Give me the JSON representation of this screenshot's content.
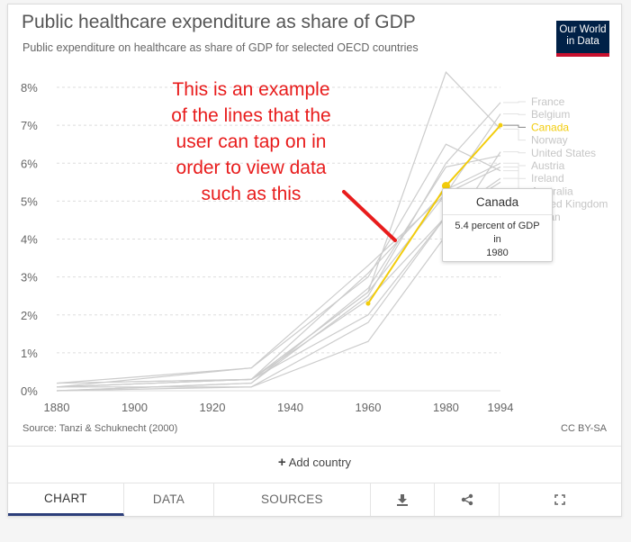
{
  "header": {
    "title": "Public healthcare expenditure as share of GDP",
    "subtitle": "Public expenditure on healthcare as share of GDP for selected OECD countries",
    "logo_line1": "Our World",
    "logo_line2": "in Data"
  },
  "annotation": {
    "lines": [
      "This is an example",
      "of the lines that the",
      "user can tap on in",
      "order to view data",
      "such as this"
    ]
  },
  "tooltip": {
    "title": "Canada",
    "line1": "5.4 percent of GDP",
    "line2": "in",
    "line3": "1980"
  },
  "footer": {
    "source": "Source: Tanzi & Schuknecht (2000)",
    "license": "CC BY-SA",
    "add_country": "Add country",
    "add_country_icon": "plus-icon"
  },
  "tabs": [
    {
      "label": "CHART",
      "active": true
    },
    {
      "label": "DATA",
      "active": false
    },
    {
      "label": "SOURCES",
      "active": false
    }
  ],
  "tab_icons": [
    "download-icon",
    "share-icon",
    "fullscreen-icon"
  ],
  "colors": {
    "highlight": "#f2cc0c",
    "lines": "#cccccc",
    "annotation": "#e81c1c",
    "tab_active": "#2c3e7a"
  },
  "chart_data": {
    "type": "line",
    "title": "Public healthcare expenditure as share of GDP",
    "subtitle": "Public expenditure on healthcare as share of GDP for selected OECD countries",
    "xlabel": "",
    "ylabel": "",
    "xlim": [
      1880,
      1994
    ],
    "ylim": [
      0,
      8
    ],
    "x_ticks": [
      1880,
      1900,
      1920,
      1940,
      1960,
      1980,
      1994
    ],
    "y_ticks": [
      "0%",
      "1%",
      "2%",
      "3%",
      "4%",
      "5%",
      "6%",
      "7%",
      "8%"
    ],
    "grid": true,
    "legend": "right",
    "highlighted_series": "Canada",
    "series": [
      {
        "name": "France",
        "x": [
          1880,
          1930,
          1960,
          1980,
          1994
        ],
        "values": [
          0.0,
          0.2,
          2.5,
          6.0,
          7.6
        ]
      },
      {
        "name": "Belgium",
        "x": [
          1880,
          1930,
          1960,
          1980,
          1994
        ],
        "values": [
          0.1,
          0.3,
          2.6,
          5.2,
          7.3
        ]
      },
      {
        "name": "Canada",
        "x": [
          1960,
          1980,
          1994
        ],
        "values": [
          2.3,
          5.4,
          7.0
        ]
      },
      {
        "name": "Norway",
        "x": [
          1880,
          1930,
          1960,
          1980,
          1994
        ],
        "values": [
          0.1,
          0.3,
          2.6,
          8.4,
          6.9
        ]
      },
      {
        "name": "United States",
        "x": [
          1880,
          1930,
          1960,
          1980,
          1994
        ],
        "values": [
          0.0,
          0.1,
          1.3,
          4.1,
          6.3
        ]
      },
      {
        "name": "Austria",
        "x": [
          1880,
          1930,
          1960,
          1980,
          1994
        ],
        "values": [
          0.2,
          0.3,
          3.1,
          5.3,
          6.0
        ]
      },
      {
        "name": "Ireland",
        "x": [
          1880,
          1930,
          1960,
          1980,
          1994
        ],
        "values": [
          0.1,
          0.6,
          3.0,
          6.5,
          5.8
        ]
      },
      {
        "name": "Australia",
        "x": [
          1880,
          1930,
          1960,
          1980,
          1994
        ],
        "values": [
          0.2,
          0.3,
          2.4,
          4.6,
          5.6
        ]
      },
      {
        "name": "United Kingdom",
        "x": [
          1880,
          1930,
          1960,
          1980,
          1994
        ],
        "values": [
          0.2,
          0.6,
          3.3,
          5.2,
          5.9
        ]
      },
      {
        "name": "Japan",
        "x": [
          1880,
          1930,
          1960,
          1980,
          1994
        ],
        "values": [
          0.1,
          0.1,
          1.8,
          4.6,
          5.3
        ]
      },
      {
        "name": "",
        "x": [
          1880,
          1930,
          1960,
          1980,
          1994
        ],
        "values": [
          0.0,
          0.2,
          2.7,
          5.9,
          6.2
        ]
      },
      {
        "name": "",
        "x": [
          1880,
          1930,
          1960,
          1980,
          1994
        ],
        "values": [
          0.1,
          0.3,
          2.0,
          4.6,
          5.5
        ]
      }
    ]
  }
}
